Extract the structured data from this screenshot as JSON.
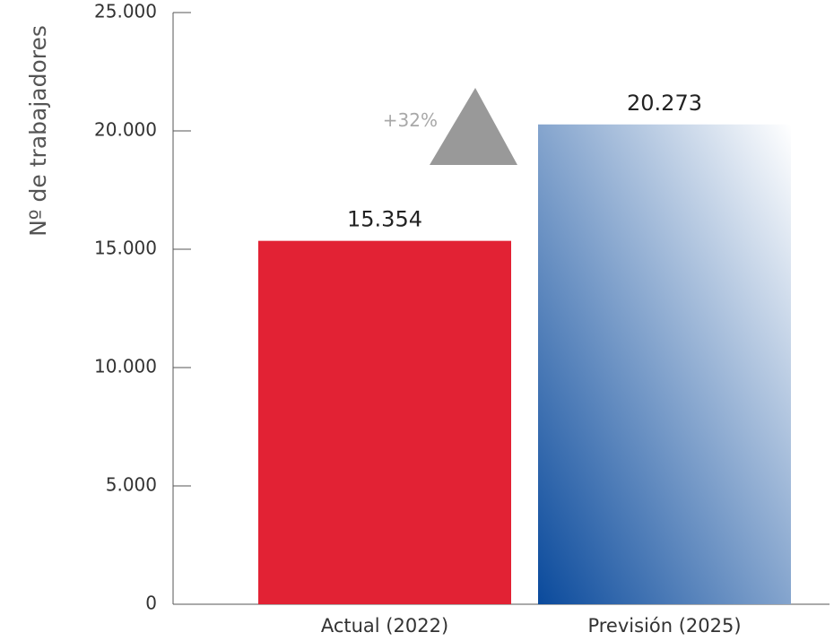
{
  "chart_data": {
    "type": "bar",
    "ylabel": "Nº de trabajadores",
    "ylim": [
      0,
      25000
    ],
    "yticks": [
      {
        "value": 0,
        "label": "0"
      },
      {
        "value": 5000,
        "label": "5.000"
      },
      {
        "value": 10000,
        "label": "10.000"
      },
      {
        "value": 15000,
        "label": "15.000"
      },
      {
        "value": 20000,
        "label": "20.000"
      },
      {
        "value": 25000,
        "label": "25.000"
      }
    ],
    "categories": [
      "Actual (2022)",
      "Previsión (2025)"
    ],
    "values": [
      15354,
      20273
    ],
    "value_labels": [
      "15.354",
      "20.273"
    ],
    "annotation": {
      "text": "+32%",
      "marker": "up-triangle-icon"
    },
    "colors": {
      "bar1": "#e22234",
      "bar2_top": "#ffffff",
      "bar2_bottom": "#0a4a9c",
      "triangle": "#999999",
      "axis": "#555555"
    },
    "grid": false,
    "legend": "none"
  }
}
